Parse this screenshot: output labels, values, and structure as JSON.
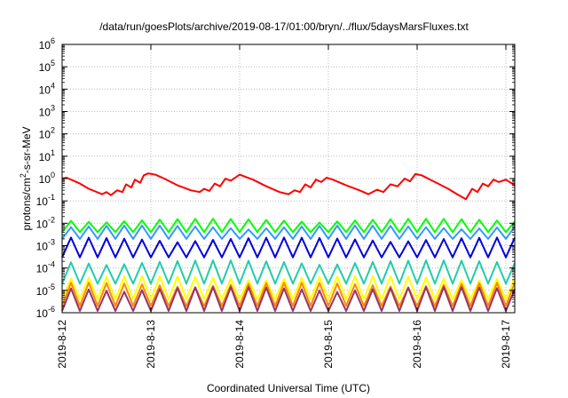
{
  "chart_data": {
    "type": "line",
    "title": "/data/run/goesPlots/archive/2019-08-17/01:00/bryn/../flux/5daysMarsFluxes.txt",
    "xlabel": "Coordinated Universal Time (UTC)",
    "ylabel_main": "protons/cm",
    "ylabel_sup": "2",
    "ylabel_tail": "-s-sr-MeV",
    "yscale": "log",
    "ylim": [
      1e-06,
      1000000.0
    ],
    "xlim": [
      0,
      5.1
    ],
    "y_ticks": [
      {
        "exp": "-6",
        "v": -6
      },
      {
        "exp": "-5",
        "v": -5
      },
      {
        "exp": "-4",
        "v": -4
      },
      {
        "exp": "-3",
        "v": -3
      },
      {
        "exp": "-2",
        "v": -2
      },
      {
        "exp": "-1",
        "v": -1
      },
      {
        "exp": "0",
        "v": 0
      },
      {
        "exp": "1",
        "v": 1
      },
      {
        "exp": "2",
        "v": 2
      },
      {
        "exp": "3",
        "v": 3
      },
      {
        "exp": "4",
        "v": 4
      },
      {
        "exp": "5",
        "v": 5
      },
      {
        "exp": "6",
        "v": 6
      }
    ],
    "x_ticks": [
      {
        "label": "2019-8-12",
        "v": 0
      },
      {
        "label": "2019-8-13",
        "v": 1
      },
      {
        "label": "2019-8-14",
        "v": 2
      },
      {
        "label": "2019-8-15",
        "v": 3
      },
      {
        "label": "2019-8-16",
        "v": 4
      },
      {
        "label": "2019-8-17",
        "v": 5
      }
    ],
    "grid": true,
    "series": [
      {
        "color": "#ff0000",
        "x": [
          0,
          0.05,
          0.2,
          0.3,
          0.45,
          0.5,
          0.55,
          0.62,
          0.68,
          0.72,
          0.78,
          0.82,
          0.88,
          0.92,
          0.97,
          1.05,
          1.15,
          1.3,
          1.45,
          1.55,
          1.6,
          1.66,
          1.72,
          1.78,
          1.84,
          1.9,
          2.0,
          2.15,
          2.3,
          2.45,
          2.55,
          2.62,
          2.68,
          2.74,
          2.8,
          2.86,
          2.92,
          2.98,
          3.05,
          3.2,
          3.35,
          3.45,
          3.55,
          3.62,
          3.7,
          3.78,
          3.86,
          3.92,
          3.98,
          4.05,
          4.2,
          4.35,
          4.45,
          4.55,
          4.62,
          4.68,
          4.74,
          4.8,
          4.86,
          4.92,
          5.0,
          5.1
        ],
        "y": [
          1.0,
          1.1,
          0.6,
          0.35,
          0.2,
          0.25,
          0.18,
          0.3,
          0.25,
          0.55,
          0.4,
          0.9,
          0.65,
          1.4,
          1.7,
          1.5,
          1.0,
          0.5,
          0.3,
          0.25,
          0.35,
          0.28,
          0.6,
          0.45,
          1.0,
          0.8,
          1.5,
          0.9,
          0.45,
          0.25,
          0.2,
          0.3,
          0.25,
          0.55,
          0.4,
          0.9,
          0.7,
          1.1,
          0.9,
          0.5,
          0.3,
          0.2,
          0.32,
          0.25,
          0.55,
          0.45,
          1.0,
          0.75,
          1.6,
          1.4,
          0.7,
          0.35,
          0.2,
          0.12,
          0.35,
          0.25,
          0.6,
          0.45,
          0.9,
          0.7,
          0.9,
          0.5
        ]
      },
      {
        "color": "#00ff00",
        "base": 0.004,
        "amp": 0.012,
        "period": 0.1
      },
      {
        "color": "#3399ff",
        "base": 0.002,
        "amp": 0.006,
        "period": 0.1
      },
      {
        "color": "#0000dd",
        "base": 0.0003,
        "amp": 0.002,
        "period": 0.1
      },
      {
        "color": "#22ccaa",
        "base": 2e-05,
        "amp": 0.0002,
        "period": 0.1
      },
      {
        "color": "#ffff00",
        "base": 4e-06,
        "amp": 4e-05,
        "period": 0.1
      },
      {
        "color": "#ff8800",
        "base": 2e-06,
        "amp": 2e-05,
        "period": 0.1
      },
      {
        "color": "#993366",
        "base": 1.2e-06,
        "amp": 1.3e-05,
        "period": 0.1
      }
    ]
  }
}
